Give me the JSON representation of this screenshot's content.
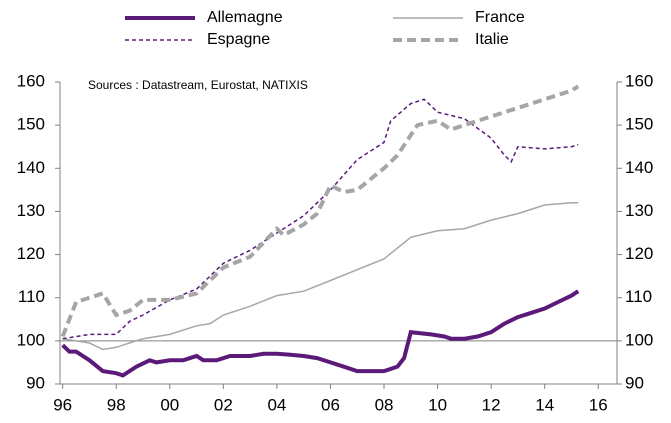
{
  "chart_data": {
    "type": "line",
    "annotation": "Sources : Datastream, Eurostat, NATIXIS",
    "xlim": [
      1995.9,
      2016.7
    ],
    "ylim": [
      90,
      160
    ],
    "y2lim": [
      90,
      160
    ],
    "xticks": [
      {
        "value": 1996,
        "label": "96"
      },
      {
        "value": 1998,
        "label": "98"
      },
      {
        "value": 2000,
        "label": "00"
      },
      {
        "value": 2002,
        "label": "02"
      },
      {
        "value": 2004,
        "label": "04"
      },
      {
        "value": 2006,
        "label": "06"
      },
      {
        "value": 2008,
        "label": "08"
      },
      {
        "value": 2010,
        "label": "10"
      },
      {
        "value": 2012,
        "label": "12"
      },
      {
        "value": 2014,
        "label": "14"
      },
      {
        "value": 2016,
        "label": "16"
      }
    ],
    "yticks": [
      90,
      100,
      110,
      120,
      130,
      140,
      150,
      160
    ],
    "y2ticks": [
      90,
      100,
      110,
      120,
      130,
      140,
      150,
      160
    ],
    "reference_line": 100,
    "grid": false,
    "series": [
      {
        "name": "Allemagne",
        "color": "#5b1a7a",
        "width": 4,
        "dash": "none",
        "x": [
          1996,
          1996.25,
          1996.5,
          1997,
          1997.5,
          1998,
          1998.25,
          1998.75,
          1999.25,
          1999.5,
          2000,
          2000.5,
          2001,
          2001.25,
          2001.75,
          2002.25,
          2003,
          2003.5,
          2004,
          2004.5,
          2005,
          2005.5,
          2006,
          2006.5,
          2007,
          2007.5,
          2008,
          2008.5,
          2008.75,
          2009,
          2009.75,
          2010.25,
          2010.5,
          2011,
          2011.5,
          2012,
          2012.5,
          2013,
          2013.5,
          2014,
          2014.5,
          2015,
          2015.25
        ],
        "values": [
          99,
          97.5,
          97.5,
          95.5,
          93,
          92.5,
          92,
          94,
          95.5,
          95,
          95.5,
          95.5,
          96.5,
          95.5,
          95.5,
          96.5,
          96.5,
          97,
          97,
          96.8,
          96.5,
          96,
          95,
          94,
          93,
          93,
          93,
          94,
          96,
          102,
          101.5,
          101,
          100.5,
          100.5,
          101,
          102,
          104,
          105.5,
          106.5,
          107.5,
          109,
          110.5,
          111.5
        ]
      },
      {
        "name": "France",
        "color": "#a6a6a6",
        "width": 1.5,
        "dash": "none",
        "x": [
          1996,
          1997,
          1997.5,
          1998,
          1999,
          2000,
          2001,
          2001.5,
          2002,
          2003,
          2004,
          2005,
          2006,
          2007,
          2008,
          2009,
          2010,
          2011,
          2012,
          2013,
          2014,
          2015,
          2015.25
        ],
        "values": [
          100.5,
          99.5,
          98,
          98.5,
          100.5,
          101.5,
          103.5,
          104,
          106,
          108,
          110.5,
          111.5,
          114,
          116.5,
          119,
          124,
          125.5,
          126,
          128,
          129.5,
          131.5,
          132,
          132
        ]
      },
      {
        "name": "Espagne",
        "color": "#5b1a7a",
        "width": 1.5,
        "dash": "4 3",
        "x": [
          1996,
          1997,
          1998,
          1998.5,
          1999,
          2000,
          2001,
          2002,
          2003,
          2004,
          2005,
          2006,
          2007,
          2008,
          2008.25,
          2009,
          2009.5,
          2010,
          2011,
          2012,
          2012.5,
          2012.75,
          2013,
          2014,
          2015,
          2015.25
        ],
        "values": [
          100.5,
          101.5,
          101.5,
          104.5,
          106,
          109.5,
          112,
          118,
          121,
          125,
          129,
          135,
          142,
          146,
          151,
          155,
          156,
          153,
          151.5,
          147,
          143,
          141.5,
          145,
          144.5,
          145,
          145.5
        ]
      },
      {
        "name": "Italie",
        "color": "#a6a6a6",
        "width": 4,
        "dash": "9 5",
        "x": [
          1996,
          1996.5,
          1997,
          1997.5,
          1998,
          1998.5,
          1999,
          2000,
          2001,
          2002,
          2003,
          2004,
          2004.25,
          2005,
          2005.5,
          2006,
          2006.5,
          2007,
          2008,
          2008.5,
          2009.25,
          2010,
          2010.5,
          2011,
          2012,
          2013,
          2014,
          2015,
          2015.25
        ],
        "values": [
          101,
          109,
          110,
          111,
          106,
          107,
          109.5,
          109.5,
          111,
          117,
          119.5,
          126,
          124.5,
          127,
          129.5,
          136,
          134.5,
          135,
          140,
          143,
          150,
          151,
          149,
          150,
          152,
          154,
          156,
          158,
          159
        ]
      }
    ]
  }
}
